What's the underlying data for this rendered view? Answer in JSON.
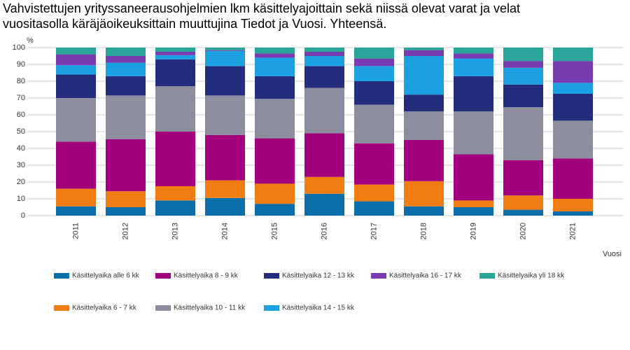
{
  "chart_data": {
    "type": "stacked_bar",
    "title": [
      "Vahvistettujen yrityssaneerausohjelmien lkm käsittelyajoittain sekä niissä olevat varat ja velat",
      "vuositasolla käräjäoikeuksittain muuttujina Tiedot ja Vuosi. Yhteensä."
    ],
    "y_label": "%",
    "x_label": "Vuosi",
    "categories": [
      "2011",
      "2012",
      "2013",
      "2014",
      "2015",
      "2016",
      "2017",
      "2018",
      "2019",
      "2020",
      "2021"
    ],
    "ylim": [
      0,
      100
    ],
    "yticks": [
      0,
      10,
      20,
      30,
      40,
      50,
      60,
      70,
      80,
      90,
      100
    ],
    "grid": true,
    "series": [
      {
        "name": "Käsittelyaika alle 6 kk",
        "color": "#0a6fab",
        "values": [
          5.5,
          5,
          9,
          10.5,
          7,
          13,
          8.5,
          5.5,
          5,
          3.5,
          2.5
        ]
      },
      {
        "name": "Käsittelyaika 6 - 7 kk",
        "color": "#ef7d12",
        "values": [
          10.5,
          9.5,
          8.5,
          10.5,
          12,
          10,
          10,
          15,
          4,
          8.5,
          7.5
        ]
      },
      {
        "name": "Käsittelyaika 8 - 9 kk",
        "color": "#a3007e",
        "values": [
          28,
          31,
          32.5,
          27,
          27,
          26,
          24.5,
          24.5,
          27.5,
          21,
          24
        ]
      },
      {
        "name": "Käsittelyaika 10 - 11 kk",
        "color": "#8c8ea0",
        "values": [
          26,
          26,
          27,
          23.5,
          23.5,
          27,
          23,
          17,
          25.5,
          31.5,
          22.5
        ]
      },
      {
        "name": "Käsittelyaika 12 - 13 kk",
        "color": "#232d7c",
        "values": [
          14,
          11.5,
          16,
          17.5,
          13.5,
          13,
          14,
          10,
          21,
          13.5,
          16
        ]
      },
      {
        "name": "Käsittelyaika 14 - 15 kk",
        "color": "#1ba1e2",
        "values": [
          5.5,
          8,
          2.5,
          9,
          11,
          6,
          9,
          23,
          10.5,
          10,
          6.5
        ]
      },
      {
        "name": "Käsittelyaika 16 - 17 kk",
        "color": "#7a3ab0",
        "values": [
          6.5,
          4,
          2,
          0.5,
          2.5,
          2.5,
          4.5,
          3.5,
          3,
          4,
          13
        ]
      },
      {
        "name": "Käsittelyaika yli 18 kk",
        "color": "#2aa59a",
        "values": [
          4,
          5,
          2.5,
          1.5,
          3.5,
          2.5,
          6.5,
          1.5,
          3.5,
          8,
          8
        ]
      }
    ]
  }
}
